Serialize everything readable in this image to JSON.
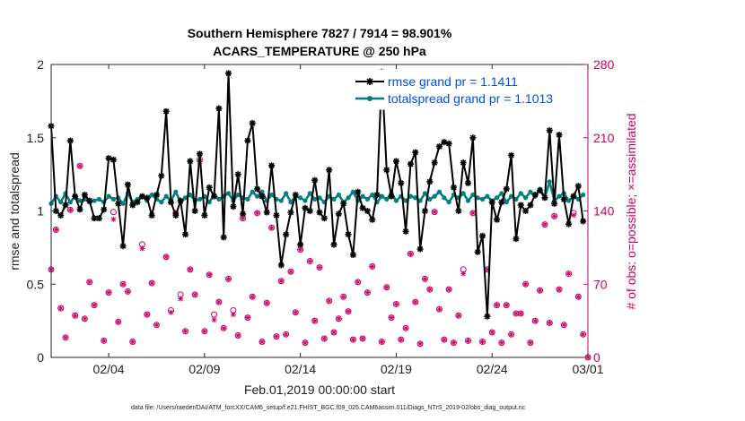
{
  "chart_data": {
    "type": "line",
    "title_line1": "Southern Hemisphere 7827 / 7914 = 98.901%",
    "title_line2": "ACARS_TEMPERATURE @ 250 hPa",
    "xlabel": "Feb.01,2019 00:00:00 start",
    "ylabel_left": "rmse and totalspread",
    "ylabel_right": "# of obs: o=possible; ×=assimilated",
    "footnote": "data file: /Users/raeder/DAI/ATM_forcXX/CAM6_setup/f.e21.FHIST_BGC.f09_025.CAM6assim.011/Diags_NTrS_2019-02/obs_diag_output.nc",
    "x_range": [
      0.0,
      28.0
    ],
    "xticks": [
      {
        "v": 3.0,
        "label": "02/04"
      },
      {
        "v": 8.0,
        "label": "02/09"
      },
      {
        "v": 13.0,
        "label": "02/14"
      },
      {
        "v": 18.0,
        "label": "02/19"
      },
      {
        "v": 23.0,
        "label": "02/24"
      },
      {
        "v": 28.0,
        "label": "03/01"
      }
    ],
    "y_left_range": [
      0,
      2
    ],
    "y_left_ticks": [
      "0",
      "0.5",
      "1",
      "1.5",
      "2"
    ],
    "y_right_range": [
      0,
      280
    ],
    "y_right_ticks": [
      "0",
      "70",
      "140",
      "210",
      "280"
    ],
    "colors": {
      "rmse": "#000000",
      "spread": "#008080",
      "obs": "#cc0066",
      "legend_text": "#0050e6"
    },
    "legend": [
      {
        "name": "rmse grand pr = 1.1411",
        "key": "rmse"
      },
      {
        "name": "totalspread grand pr = 1.1013",
        "key": "spread"
      }
    ],
    "x": [
      0.0,
      0.25,
      0.5,
      0.75,
      1.0,
      1.25,
      1.5,
      1.75,
      2.0,
      2.25,
      2.5,
      2.75,
      3.0,
      3.25,
      3.5,
      3.75,
      4.0,
      4.25,
      4.5,
      4.75,
      5.0,
      5.25,
      5.5,
      5.75,
      6.0,
      6.25,
      6.5,
      6.75,
      7.0,
      7.25,
      7.5,
      7.75,
      8.0,
      8.25,
      8.5,
      8.75,
      9.0,
      9.25,
      9.5,
      9.75,
      10.0,
      10.25,
      10.5,
      10.75,
      11.0,
      11.25,
      11.5,
      11.75,
      12.0,
      12.25,
      12.5,
      12.75,
      13.0,
      13.25,
      13.5,
      13.75,
      14.0,
      14.25,
      14.5,
      14.75,
      15.0,
      15.25,
      15.5,
      15.75,
      16.0,
      16.25,
      16.5,
      16.75,
      17.0,
      17.25,
      17.5,
      17.75,
      18.0,
      18.25,
      18.5,
      18.75,
      19.0,
      19.25,
      19.5,
      19.75,
      20.0,
      20.25,
      20.5,
      20.75,
      21.0,
      21.25,
      21.5,
      21.75,
      22.0,
      22.25,
      22.5,
      22.75,
      23.0,
      23.25,
      23.5,
      23.75,
      24.0,
      24.25,
      24.5,
      24.75,
      25.0,
      25.25,
      25.5,
      25.75,
      26.0,
      26.25,
      26.5,
      26.75,
      27.0,
      27.25,
      27.5,
      27.75
    ],
    "rmse": [
      1.58,
      1.0,
      0.97,
      1.04,
      1.48,
      1.1,
      1.01,
      1.11,
      1.07,
      0.95,
      0.95,
      1.01,
      1.36,
      1.35,
      1.05,
      0.76,
      1.18,
      1.04,
      1.06,
      1.1,
      1.09,
      0.97,
      1.11,
      1.24,
      1.68,
      1.06,
      0.97,
      1.07,
      0.84,
      1.34,
      1.0,
      1.39,
      0.97,
      1.16,
      1.1,
      1.7,
      0.82,
      1.94,
      1.03,
      1.25,
      0.98,
      1.48,
      1.6,
      1.15,
      1.1,
      0.99,
      1.31,
      0.97,
      0.63,
      0.84,
      0.99,
      1.11,
      0.77,
      1.02,
      1.0,
      1.21,
      0.99,
      0.95,
      1.28,
      0.77,
      0.98,
      1.05,
      0.84,
      0.7,
      1.13,
      1.02,
      1.0,
      0.94,
      1.11,
      1.95,
      1.28,
      1.1,
      1.34,
      1.19,
      0.86,
      1.32,
      1.4,
      0.74,
      1.0,
      1.2,
      1.33,
      1.44,
      1.47,
      1.46,
      1.16,
      1.0,
      1.33,
      1.19,
      1.5,
      0.72,
      0.83,
      0.28,
      1.06,
      0.94,
      1.06,
      1.15,
      1.38,
      0.81,
      1.04,
      1.0,
      1.04,
      1.11,
      1.14,
      1.09,
      1.55,
      1.05,
      1.52,
      1.08,
      0.91,
      1.1,
      1.17,
      0.93
    ],
    "spread": [
      1.05,
      1.1,
      1.06,
      1.12,
      1.06,
      1.1,
      1.07,
      1.08,
      1.06,
      1.07,
      1.08,
      1.06,
      1.1,
      1.08,
      1.09,
      1.05,
      1.12,
      1.06,
      1.08,
      1.1,
      1.07,
      1.11,
      1.08,
      1.06,
      1.1,
      1.07,
      1.13,
      1.06,
      1.09,
      1.11,
      1.07,
      1.08,
      1.1,
      1.06,
      1.11,
      1.08,
      1.1,
      1.12,
      1.07,
      1.11,
      1.09,
      1.08,
      1.13,
      1.1,
      1.13,
      1.07,
      1.11,
      1.08,
      1.07,
      1.12,
      1.06,
      1.1,
      1.09,
      1.07,
      1.12,
      1.08,
      1.09,
      1.06,
      1.1,
      1.08,
      1.11,
      1.06,
      1.09,
      1.13,
      1.07,
      1.1,
      1.08,
      1.11,
      1.06,
      1.1,
      1.08,
      1.12,
      1.07,
      1.1,
      1.07,
      1.1,
      1.09,
      1.07,
      1.12,
      1.08,
      1.1,
      1.13,
      1.09,
      1.06,
      1.11,
      1.09,
      1.12,
      1.07,
      1.11,
      1.09,
      1.08,
      1.1,
      1.07,
      1.09,
      1.12,
      1.06,
      1.1,
      1.08,
      1.12,
      1.09,
      1.13,
      1.1,
      1.15,
      1.09,
      1.2,
      1.07,
      1.1,
      1.12,
      1.07,
      1.1,
      1.08,
      1.11
    ],
    "obs_possible": [
      [
        0.0,
        84.0
      ],
      [
        0.25,
        122.0
      ],
      [
        0.5,
        47.0
      ],
      [
        0.75,
        19.0
      ],
      [
        1.0,
        141.0
      ],
      [
        1.25,
        40.0
      ],
      [
        1.5,
        183.0
      ],
      [
        1.75,
        37.0
      ],
      [
        2.0,
        72.0
      ],
      [
        2.25,
        50.0
      ],
      [
        2.75,
        16.0
      ],
      [
        3.0,
        62.0
      ],
      [
        3.25,
        139.0
      ],
      [
        3.5,
        34.0
      ],
      [
        3.75,
        70.0
      ],
      [
        4.0,
        63.0
      ],
      [
        4.25,
        15.0
      ],
      [
        4.75,
        108.0
      ],
      [
        5.0,
        41.0
      ],
      [
        5.25,
        71.0
      ],
      [
        5.5,
        31.0
      ],
      [
        6.0,
        96.0
      ],
      [
        6.25,
        45.0
      ],
      [
        6.5,
        138.0
      ],
      [
        6.75,
        60.0
      ],
      [
        7.0,
        25.0
      ],
      [
        7.25,
        84.0
      ],
      [
        7.5,
        60.0
      ],
      [
        7.75,
        189.0
      ],
      [
        8.0,
        25.0
      ],
      [
        8.25,
        79.0
      ],
      [
        8.5,
        41.0
      ],
      [
        8.75,
        53.0
      ],
      [
        9.0,
        28.0
      ],
      [
        9.25,
        75.0
      ],
      [
        9.5,
        45.0
      ],
      [
        9.75,
        21.0
      ],
      [
        10.0,
        133.0
      ],
      [
        10.25,
        38.0
      ],
      [
        10.5,
        58.0
      ],
      [
        10.75,
        138.0
      ],
      [
        11.0,
        15.0
      ],
      [
        11.25,
        52.0
      ],
      [
        11.5,
        124.0
      ],
      [
        11.75,
        20.0
      ],
      [
        12.0,
        73.0
      ],
      [
        12.25,
        22.0
      ],
      [
        12.5,
        82.0
      ],
      [
        12.75,
        43.0
      ],
      [
        13.0,
        103.0
      ],
      [
        13.25,
        14.0
      ],
      [
        13.5,
        92.0
      ],
      [
        13.75,
        35.0
      ],
      [
        14.0,
        86.0
      ],
      [
        14.25,
        18.0
      ],
      [
        14.5,
        54.0
      ],
      [
        14.75,
        24.0
      ],
      [
        15.0,
        37.0
      ],
      [
        15.25,
        58.0
      ],
      [
        15.5,
        44.0
      ],
      [
        15.75,
        17.0
      ],
      [
        16.0,
        72.0
      ],
      [
        16.25,
        18.0
      ],
      [
        16.5,
        62.0
      ],
      [
        16.75,
        87.0
      ],
      [
        17.0,
        240.0
      ],
      [
        17.25,
        15.0
      ],
      [
        17.5,
        67.0
      ],
      [
        17.75,
        38.0
      ],
      [
        18.0,
        51.0
      ],
      [
        18.25,
        17.0
      ],
      [
        18.5,
        28.0
      ],
      [
        18.75,
        99.0
      ],
      [
        19.0,
        53.0
      ],
      [
        19.25,
        13.0
      ],
      [
        19.5,
        75.0
      ],
      [
        19.75,
        65.0
      ],
      [
        20.0,
        139.0
      ],
      [
        20.25,
        46.0
      ],
      [
        20.5,
        17.0
      ],
      [
        20.75,
        65.0
      ],
      [
        21.0,
        14.0
      ],
      [
        21.25,
        40.0
      ],
      [
        21.5,
        84.0
      ],
      [
        21.75,
        16.0
      ],
      [
        22.0,
        138.0
      ],
      [
        22.5,
        15.0
      ],
      [
        22.75,
        84.0
      ],
      [
        23.0,
        24.0
      ],
      [
        23.25,
        50.0
      ],
      [
        23.5,
        14.0
      ],
      [
        23.75,
        50.0
      ],
      [
        24.0,
        22.0
      ],
      [
        24.25,
        42.0
      ],
      [
        24.5,
        42.0
      ],
      [
        24.75,
        70.0
      ],
      [
        25.0,
        14.0
      ],
      [
        25.25,
        35.0
      ],
      [
        25.5,
        64.0
      ],
      [
        25.75,
        127.0
      ],
      [
        26.0,
        33.0
      ],
      [
        26.25,
        135.0
      ],
      [
        26.5,
        65.0
      ],
      [
        26.75,
        31.0
      ],
      [
        27.0,
        80.0
      ],
      [
        27.25,
        138.0
      ],
      [
        27.5,
        58.0
      ],
      [
        27.75,
        22.0
      ],
      [
        28.0,
        0.0
      ]
    ],
    "obs_assimilated": [
      [
        0.0,
        84.0
      ],
      [
        0.25,
        122.0
      ],
      [
        0.5,
        47.0
      ],
      [
        0.75,
        19.0
      ],
      [
        1.0,
        141.0
      ],
      [
        1.25,
        40.0
      ],
      [
        1.5,
        183.0
      ],
      [
        1.75,
        37.0
      ],
      [
        2.0,
        72.0
      ],
      [
        2.25,
        50.0
      ],
      [
        2.75,
        16.0
      ],
      [
        3.0,
        62.0
      ],
      [
        3.25,
        132.0
      ],
      [
        3.5,
        34.0
      ],
      [
        3.75,
        70.0
      ],
      [
        4.0,
        63.0
      ],
      [
        4.25,
        15.0
      ],
      [
        4.75,
        104.0
      ],
      [
        5.0,
        41.0
      ],
      [
        5.25,
        71.0
      ],
      [
        5.5,
        31.0
      ],
      [
        6.0,
        96.0
      ],
      [
        6.25,
        43.0
      ],
      [
        6.5,
        138.0
      ],
      [
        6.75,
        56.0
      ],
      [
        7.0,
        25.0
      ],
      [
        7.25,
        84.0
      ],
      [
        7.5,
        60.0
      ],
      [
        7.75,
        187.0
      ],
      [
        8.0,
        25.0
      ],
      [
        8.25,
        79.0
      ],
      [
        8.5,
        36.0
      ],
      [
        8.75,
        53.0
      ],
      [
        9.0,
        28.0
      ],
      [
        9.25,
        75.0
      ],
      [
        9.5,
        41.0
      ],
      [
        9.75,
        21.0
      ],
      [
        10.0,
        133.0
      ],
      [
        10.25,
        38.0
      ],
      [
        10.5,
        58.0
      ],
      [
        10.75,
        138.0
      ],
      [
        11.0,
        15.0
      ],
      [
        11.25,
        52.0
      ],
      [
        11.5,
        124.0
      ],
      [
        11.75,
        20.0
      ],
      [
        12.0,
        73.0
      ],
      [
        12.25,
        22.0
      ],
      [
        12.5,
        82.0
      ],
      [
        12.75,
        43.0
      ],
      [
        13.0,
        103.0
      ],
      [
        13.25,
        14.0
      ],
      [
        13.5,
        92.0
      ],
      [
        13.75,
        35.0
      ],
      [
        14.0,
        86.0
      ],
      [
        14.25,
        18.0
      ],
      [
        14.5,
        54.0
      ],
      [
        14.75,
        24.0
      ],
      [
        15.0,
        37.0
      ],
      [
        15.25,
        58.0
      ],
      [
        15.5,
        44.0
      ],
      [
        15.75,
        17.0
      ],
      [
        16.0,
        72.0
      ],
      [
        16.25,
        18.0
      ],
      [
        16.5,
        62.0
      ],
      [
        16.75,
        87.0
      ],
      [
        17.0,
        240.0
      ],
      [
        17.25,
        15.0
      ],
      [
        17.5,
        67.0
      ],
      [
        17.75,
        38.0
      ],
      [
        18.0,
        51.0
      ],
      [
        18.25,
        17.0
      ],
      [
        18.5,
        28.0
      ],
      [
        18.75,
        99.0
      ],
      [
        19.0,
        53.0
      ],
      [
        19.25,
        13.0
      ],
      [
        19.5,
        75.0
      ],
      [
        19.75,
        65.0
      ],
      [
        20.0,
        139.0
      ],
      [
        20.25,
        46.0
      ],
      [
        20.5,
        17.0
      ],
      [
        20.75,
        65.0
      ],
      [
        21.0,
        14.0
      ],
      [
        21.25,
        40.0
      ],
      [
        21.5,
        80.0
      ],
      [
        21.75,
        16.0
      ],
      [
        22.0,
        138.0
      ],
      [
        22.5,
        15.0
      ],
      [
        22.75,
        84.0
      ],
      [
        23.0,
        24.0
      ],
      [
        23.25,
        50.0
      ],
      [
        23.5,
        14.0
      ],
      [
        23.75,
        50.0
      ],
      [
        24.0,
        22.0
      ],
      [
        24.25,
        42.0
      ],
      [
        24.5,
        42.0
      ],
      [
        24.75,
        70.0
      ],
      [
        25.0,
        14.0
      ],
      [
        25.25,
        35.0
      ],
      [
        25.5,
        64.0
      ],
      [
        25.75,
        127.0
      ],
      [
        26.0,
        33.0
      ],
      [
        26.25,
        135.0
      ],
      [
        26.5,
        65.0
      ],
      [
        26.75,
        31.0
      ],
      [
        27.0,
        80.0
      ],
      [
        27.25,
        136.0
      ],
      [
        27.5,
        58.0
      ],
      [
        27.75,
        22.0
      ],
      [
        28.0,
        0.0
      ]
    ]
  }
}
